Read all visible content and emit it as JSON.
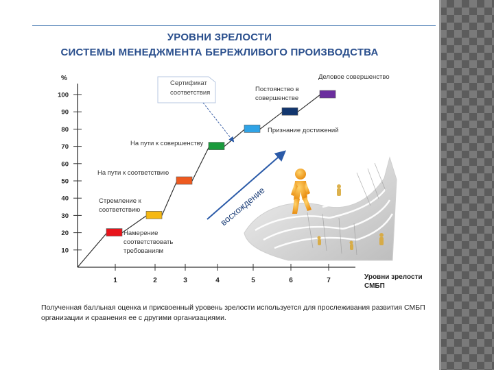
{
  "slide": {
    "title_line1": "УРОВНИ ЗРЕЛОСТИ",
    "title_line2": "СИСТЕМЫ МЕНЕДЖМЕНТА БЕРЕЖЛИВОГО ПРОИЗВОДСТВА",
    "caption": "Полученная балльная оценка и присвоенный уровень зрелости используется для прослеживания развития СМБП организации и сравнения ее с другими организациями."
  },
  "chart_data": {
    "type": "line",
    "ylabel": "%",
    "xlabel": "Уровни зрелости СМБП",
    "x_ticks": [
      "1",
      "2",
      "3",
      "4",
      "5",
      "6",
      "7"
    ],
    "y_ticks": [
      10,
      20,
      30,
      40,
      50,
      60,
      70,
      80,
      90,
      100
    ],
    "ylim": [
      0,
      110
    ],
    "steps": [
      {
        "x": 1,
        "y": 20,
        "color": "#e8141b",
        "label": "Намерение соответствовать требованиям"
      },
      {
        "x": 2,
        "y": 30,
        "color": "#f5b813",
        "label": "Стремление к соответствию"
      },
      {
        "x": 3,
        "y": 50,
        "color": "#ee5a20",
        "label": "На пути к соответствию"
      },
      {
        "x": 4,
        "y": 70,
        "color": "#1a9a3c",
        "label": "На пути к совершенству"
      },
      {
        "x": 5,
        "y": 80,
        "color": "#2fa3e6",
        "label": "Признание достижений"
      },
      {
        "x": 6,
        "y": 90,
        "color": "#12366e",
        "label": "Постоянство в совершенстве"
      },
      {
        "x": 7,
        "y": 100,
        "color": "#6b2e9e",
        "label": "Деловое совершенство"
      }
    ],
    "annotations": {
      "certificate": "Сертификат соответствия",
      "ascent": "восхождение"
    }
  }
}
